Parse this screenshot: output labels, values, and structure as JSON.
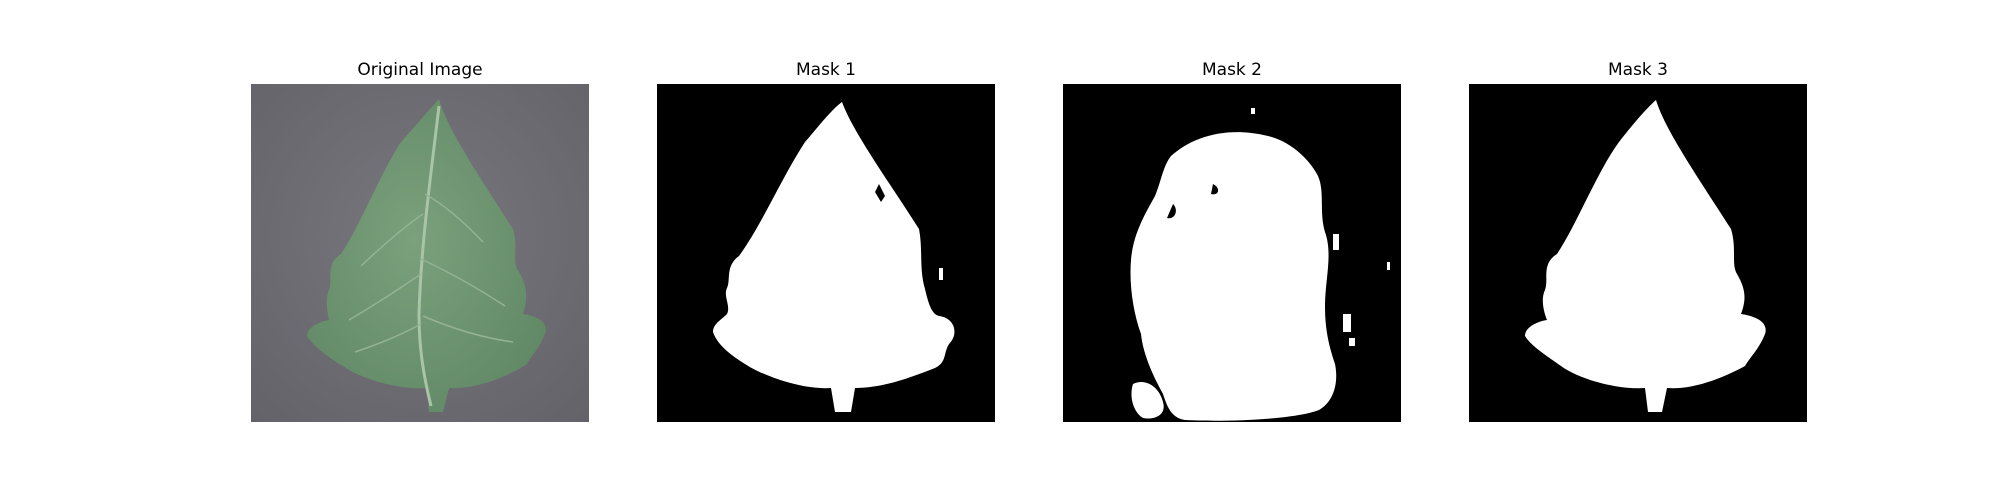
{
  "panels": [
    {
      "title": "Original Image",
      "kind": "photo"
    },
    {
      "title": "Mask 1",
      "kind": "mask"
    },
    {
      "title": "Mask 2",
      "kind": "mask"
    },
    {
      "title": "Mask 3",
      "kind": "mask"
    }
  ],
  "colors": {
    "background": "#ffffff",
    "mask_background": "#000000",
    "mask_foreground": "#ffffff",
    "photo_background": "#6e6e74",
    "leaf": "#6d9470",
    "leaf_vein": "#a9c4a6"
  }
}
